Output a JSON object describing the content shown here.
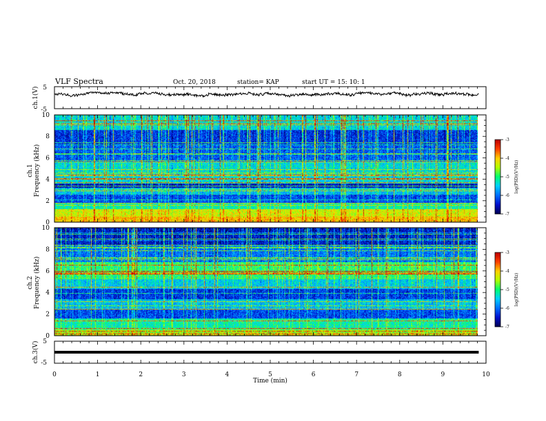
{
  "header": {
    "title": "VLF Spectra",
    "date": "Oct. 20, 2018",
    "station": "station= KAP",
    "start_ut": "start  UT =   15: 10: 1"
  },
  "chart_data": [
    {
      "type": "line",
      "panel": "ch1-waveform",
      "ylabel": "ch.1(V)",
      "ylim": [
        -5,
        5
      ],
      "yticks": [
        "5",
        "-5"
      ],
      "xlim": [
        0,
        10
      ],
      "x_extent_min": 9.83,
      "series": [
        {
          "values_note": "noisy broadband signal, about 0.5 to 2.5 V",
          "min": 0.3,
          "max": 2.6
        }
      ]
    },
    {
      "type": "heatmap",
      "panel": "ch1-spectrogram",
      "ylabel": "ch.1\nFrequency (kHz)",
      "ylim": [
        0,
        10
      ],
      "yticks": [
        "0",
        "2",
        "4",
        "6",
        "8",
        "10"
      ],
      "xlim": [
        0,
        10
      ],
      "x_extent_min": 9.83,
      "colorbar": {
        "label": "log(PSD)(V²/Hz)",
        "range": [
          -7,
          -3
        ],
        "ticks": [
          "-3",
          "-4",
          "-5",
          "-6",
          "-7"
        ]
      },
      "band_levels": [
        {
          "f0": 0.0,
          "f1": 0.5,
          "level": -4.0
        },
        {
          "f0": 0.5,
          "f1": 1.2,
          "level": -4.3
        },
        {
          "f0": 1.2,
          "f1": 1.8,
          "level": -5.2
        },
        {
          "f0": 1.8,
          "f1": 2.6,
          "level": -6.2
        },
        {
          "f0": 2.6,
          "f1": 3.2,
          "level": -5.6
        },
        {
          "f0": 3.2,
          "f1": 3.6,
          "level": -6.6
        },
        {
          "f0": 3.6,
          "f1": 4.8,
          "level": -5.5
        },
        {
          "f0": 4.8,
          "f1": 5.6,
          "level": -5.4
        },
        {
          "f0": 5.6,
          "f1": 7.2,
          "level": -6.1
        },
        {
          "f0": 7.2,
          "f1": 8.6,
          "level": -6.3
        },
        {
          "f0": 8.6,
          "f1": 10.0,
          "level": -5.4
        }
      ]
    },
    {
      "type": "heatmap",
      "panel": "ch2-spectrogram",
      "ylabel": "ch.2\nFrequency (kHz)",
      "ylim": [
        0,
        10
      ],
      "yticks": [
        "0",
        "2",
        "4",
        "6",
        "8",
        "10"
      ],
      "xlim": [
        0,
        10
      ],
      "x_extent_min": 9.83,
      "colorbar": {
        "label": "log(PSD)(V²/Hz)",
        "range": [
          -7,
          -3
        ],
        "ticks": [
          "-3",
          "-4",
          "-5",
          "-6",
          "-7"
        ]
      },
      "band_levels": [
        {
          "f0": 0.0,
          "f1": 0.6,
          "level": -4.6
        },
        {
          "f0": 0.6,
          "f1": 1.6,
          "level": -5.2
        },
        {
          "f0": 1.6,
          "f1": 2.4,
          "level": -6.2
        },
        {
          "f0": 2.4,
          "f1": 3.4,
          "level": -5.6
        },
        {
          "f0": 3.4,
          "f1": 4.3,
          "level": -6.3
        },
        {
          "f0": 4.3,
          "f1": 5.2,
          "level": -5.5
        },
        {
          "f0": 5.2,
          "f1": 6.8,
          "level": -5.0
        },
        {
          "f0": 6.8,
          "f1": 8.4,
          "level": -6.0
        },
        {
          "f0": 8.4,
          "f1": 10.0,
          "level": -6.5
        }
      ]
    },
    {
      "type": "line",
      "panel": "ch3-waveform",
      "ylabel": "ch.3(V)",
      "ylim": [
        -5,
        5
      ],
      "yticks": [
        "5",
        "-5"
      ],
      "xlim": [
        0,
        10
      ],
      "x_extent_min": 9.83,
      "series": [
        {
          "constant": 0,
          "min": 0,
          "max": 0
        }
      ]
    }
  ],
  "xaxis": {
    "label": "Time (min)",
    "ticks": [
      "0",
      "1",
      "2",
      "3",
      "4",
      "5",
      "6",
      "7",
      "8",
      "9",
      "10"
    ]
  },
  "colors": {
    "trace": "#000000",
    "axis": "#000000",
    "colormap": [
      "#000055",
      "#0010d0",
      "#0070ff",
      "#00d0ff",
      "#00ff70",
      "#b0ff00",
      "#ffd000",
      "#ff4000",
      "#c00000"
    ]
  }
}
